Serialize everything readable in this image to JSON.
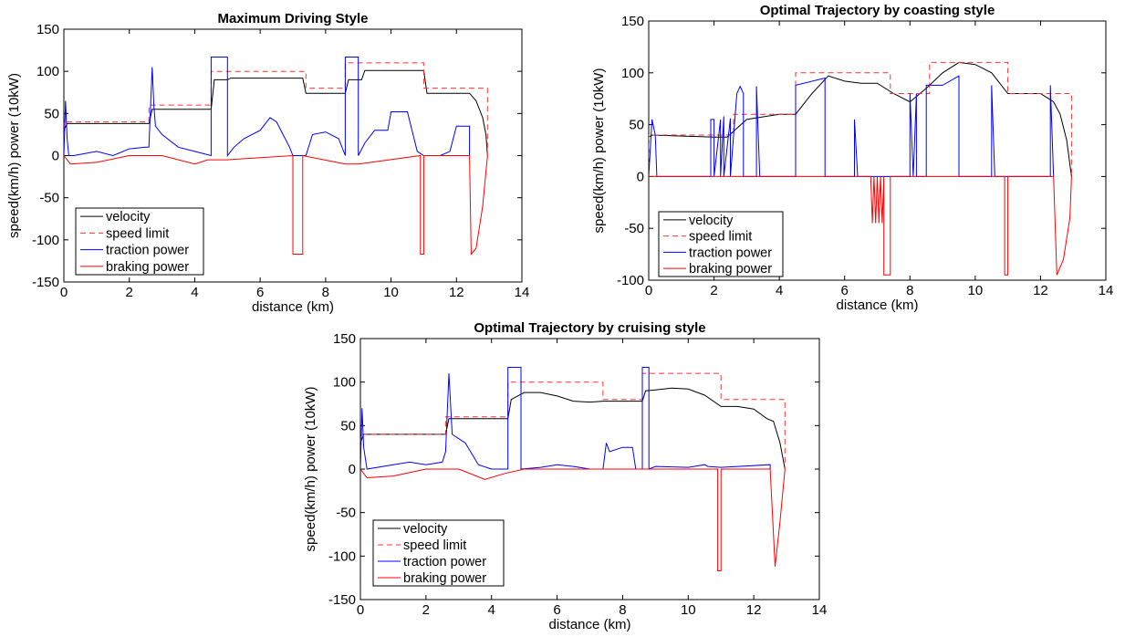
{
  "colors": {
    "velocity": "#000000",
    "speed_limit": "#ff3333",
    "traction": "#0000ff",
    "braking": "#ff0000"
  },
  "chart_data": [
    {
      "type": "line",
      "title": "Maximum Driving Style",
      "xlabel": "distance (km)",
      "ylabel": "speed(km/h) power (10kW)",
      "xlim": [
        0,
        14
      ],
      "ylim": [
        -150,
        150
      ],
      "xticks": [
        0,
        2,
        4,
        6,
        8,
        10,
        12,
        14
      ],
      "yticks": [
        -150,
        -100,
        -50,
        0,
        50,
        100,
        150
      ],
      "legend_position": "bottom-left",
      "series": [
        {
          "name": "velocity",
          "style": "solid",
          "color": "#000000",
          "x": [
            0,
            0.1,
            2.6,
            2.7,
            4.5,
            4.6,
            5.0,
            5.1,
            7.3,
            7.4,
            8.6,
            8.7,
            9.1,
            9.2,
            11.0,
            11.1,
            12.4,
            12.6,
            12.8,
            12.9,
            12.95
          ],
          "y": [
            30,
            38,
            38,
            55,
            55,
            90,
            90,
            92,
            92,
            74,
            74,
            90,
            90,
            101,
            101,
            74,
            74,
            65,
            45,
            25,
            0
          ]
        },
        {
          "name": "speed limit",
          "style": "dashed",
          "color": "#ff3333",
          "x": [
            0,
            0,
            2.6,
            2.6,
            4.5,
            4.5,
            7.4,
            7.4,
            8.6,
            8.6,
            11.0,
            11.0,
            12.95,
            12.95
          ],
          "y": [
            0,
            40,
            40,
            60,
            60,
            100,
            100,
            80,
            80,
            110,
            110,
            80,
            80,
            0
          ]
        },
        {
          "name": "traction power",
          "style": "solid",
          "color": "#0000ff",
          "x": [
            0,
            0.05,
            0.1,
            0.15,
            0.3,
            1.0,
            1.5,
            2.0,
            2.5,
            2.6,
            2.7,
            2.75,
            2.8,
            3.0,
            3.5,
            4.0,
            4.5,
            4.5,
            5.0,
            5.0,
            5.2,
            5.5,
            6.0,
            6.3,
            6.5,
            6.7,
            6.9,
            7.0,
            7.4,
            7.6,
            8.0,
            8.4,
            8.6,
            8.6,
            9.0,
            9.0,
            9.2,
            9.5,
            9.9,
            10.0,
            10.5,
            10.8,
            11.0,
            11.5,
            11.8,
            12.0,
            12.4,
            12.4
          ],
          "y": [
            0,
            65,
            20,
            0,
            0,
            5,
            0,
            8,
            10,
            10,
            105,
            60,
            35,
            25,
            10,
            5,
            0,
            117,
            117,
            0,
            10,
            20,
            30,
            45,
            40,
            25,
            10,
            0,
            0,
            25,
            28,
            20,
            0,
            117,
            117,
            0,
            15,
            30,
            30,
            52,
            52,
            5,
            0,
            0,
            5,
            35,
            35,
            0
          ]
        },
        {
          "name": "braking power",
          "style": "solid",
          "color": "#ff0000",
          "x": [
            0,
            0.2,
            1.0,
            2.0,
            3.0,
            4.0,
            4.4,
            5.0,
            7.0,
            7.0,
            7.3,
            7.3,
            8.6,
            9.0,
            10.9,
            10.9,
            11.0,
            11.0,
            12.4,
            12.45,
            12.6,
            12.8,
            12.95,
            12.95
          ],
          "y": [
            0,
            -10,
            -8,
            0,
            0,
            -10,
            -5,
            -5,
            0,
            -117,
            -117,
            0,
            -10,
            -10,
            0,
            -117,
            -117,
            0,
            0,
            -117,
            -110,
            -60,
            0,
            0
          ]
        }
      ]
    },
    {
      "type": "line",
      "title": "Optimal Trajectory by coasting style",
      "xlabel": "distance (km)",
      "ylabel": "speed(km/h) power (10kW)",
      "xlim": [
        0,
        14
      ],
      "ylim": [
        -100,
        150
      ],
      "xticks": [
        0,
        2,
        4,
        6,
        8,
        10,
        12,
        14
      ],
      "yticks": [
        -100,
        -50,
        0,
        50,
        100,
        150
      ],
      "legend_position": "bottom-left",
      "series": [
        {
          "name": "velocity",
          "style": "solid",
          "color": "#000000",
          "x": [
            0,
            0.1,
            2.0,
            2.4,
            3.0,
            4.0,
            4.5,
            5.0,
            5.5,
            6.0,
            6.5,
            7.0,
            7.5,
            8.0,
            8.5,
            9.0,
            9.5,
            10.0,
            10.5,
            11.0,
            12.0,
            12.4,
            12.6,
            12.8,
            12.95
          ],
          "y": [
            38,
            40,
            38,
            38,
            55,
            60,
            60,
            80,
            97,
            92,
            90,
            90,
            80,
            72,
            85,
            100,
            110,
            108,
            100,
            80,
            80,
            72,
            60,
            35,
            0
          ]
        },
        {
          "name": "speed limit",
          "style": "dashed",
          "color": "#ff3333",
          "x": [
            0,
            0,
            2.6,
            2.6,
            4.5,
            4.5,
            7.4,
            7.4,
            8.6,
            8.6,
            11.0,
            11.0,
            12.95,
            12.95
          ],
          "y": [
            0,
            40,
            40,
            60,
            60,
            100,
            100,
            80,
            80,
            110,
            110,
            80,
            80,
            0
          ]
        },
        {
          "name": "traction power",
          "style": "solid",
          "color": "#0000ff",
          "x": [
            0,
            0.1,
            0.2,
            0.25,
            1.9,
            1.9,
            2.0,
            2.0,
            2.2,
            2.2,
            2.3,
            2.3,
            2.5,
            2.5,
            2.7,
            2.8,
            2.9,
            2.9,
            3.3,
            3.3,
            3.4,
            4.5,
            4.5,
            5.4,
            5.4,
            6.3,
            6.3,
            6.4,
            8.0,
            8.0,
            8.1,
            8.2,
            8.2,
            8.5,
            8.5,
            9.0,
            9.5,
            9.5,
            10.5,
            10.5,
            10.6,
            12.3,
            12.3,
            12.4
          ],
          "y": [
            0,
            55,
            40,
            0,
            0,
            55,
            55,
            0,
            55,
            0,
            58,
            0,
            56,
            0,
            80,
            87,
            80,
            0,
            0,
            87,
            0,
            0,
            88,
            95,
            0,
            0,
            55,
            0,
            0,
            80,
            0,
            80,
            0,
            0,
            88,
            88,
            97,
            0,
            0,
            88,
            0,
            0,
            88,
            0
          ]
        },
        {
          "name": "braking power",
          "style": "solid",
          "color": "#ff0000",
          "x": [
            0,
            6.8,
            6.85,
            6.9,
            6.95,
            7.0,
            7.05,
            7.1,
            7.15,
            7.2,
            7.2,
            7.4,
            7.4,
            10.9,
            10.9,
            11.0,
            11.0,
            12.4,
            12.5,
            12.7,
            12.9,
            12.95
          ],
          "y": [
            0,
            0,
            -45,
            0,
            -45,
            0,
            -45,
            0,
            -45,
            0,
            -95,
            -95,
            0,
            0,
            -95,
            -95,
            0,
            0,
            -95,
            -80,
            -40,
            0
          ]
        }
      ]
    },
    {
      "type": "line",
      "title": "Optimal Trajectory by cruising style",
      "xlabel": "distance (km)",
      "ylabel": "speed(km/h) power (10kW)",
      "xlim": [
        0,
        14
      ],
      "ylim": [
        -150,
        150
      ],
      "xticks": [
        0,
        2,
        4,
        6,
        8,
        10,
        12,
        14
      ],
      "yticks": [
        -150,
        -100,
        -50,
        0,
        50,
        100,
        150
      ],
      "legend_position": "bottom-left",
      "series": [
        {
          "name": "velocity",
          "style": "solid",
          "color": "#000000",
          "x": [
            0,
            0.1,
            2.6,
            2.7,
            4.5,
            4.6,
            5.0,
            5.5,
            6.0,
            6.5,
            7.0,
            7.4,
            7.5,
            8.6,
            8.7,
            9.0,
            9.5,
            10.0,
            10.5,
            11.0,
            11.5,
            12.0,
            12.4,
            12.6,
            12.8,
            12.95
          ],
          "y": [
            30,
            40,
            40,
            58,
            58,
            80,
            88,
            88,
            84,
            78,
            77,
            78,
            78,
            78,
            90,
            91,
            93,
            92,
            85,
            72,
            72,
            69,
            58,
            55,
            30,
            0
          ]
        },
        {
          "name": "speed limit",
          "style": "dashed",
          "color": "#ff3333",
          "x": [
            0,
            0,
            2.6,
            2.6,
            4.5,
            4.5,
            7.4,
            7.4,
            8.6,
            8.6,
            11.0,
            11.0,
            12.95,
            12.95
          ],
          "y": [
            0,
            40,
            40,
            60,
            60,
            100,
            100,
            80,
            80,
            110,
            110,
            80,
            80,
            0
          ]
        },
        {
          "name": "traction power",
          "style": "solid",
          "color": "#0000ff",
          "x": [
            0,
            0.05,
            0.1,
            0.2,
            1.0,
            1.5,
            2.0,
            2.5,
            2.6,
            2.7,
            2.8,
            3.2,
            3.6,
            4.0,
            4.5,
            4.5,
            4.9,
            4.9,
            5.5,
            6.0,
            6.5,
            7.0,
            7.4,
            7.5,
            7.6,
            8.0,
            8.3,
            8.4,
            8.6,
            8.6,
            8.8,
            8.8,
            9.0,
            10.0,
            10.5,
            10.6,
            11.0,
            12.5,
            12.5
          ],
          "y": [
            0,
            70,
            25,
            0,
            5,
            8,
            5,
            8,
            20,
            110,
            40,
            30,
            5,
            0,
            0,
            117,
            117,
            0,
            2,
            5,
            3,
            0,
            0,
            30,
            20,
            25,
            25,
            0,
            0,
            117,
            117,
            0,
            3,
            2,
            5,
            3,
            2,
            5,
            0
          ]
        },
        {
          "name": "braking power",
          "style": "solid",
          "color": "#ff0000",
          "x": [
            0,
            0.2,
            1.0,
            2.0,
            3.0,
            3.8,
            4.4,
            5.0,
            10.9,
            10.9,
            11.0,
            11.0,
            12.5,
            12.65,
            12.8,
            12.95
          ],
          "y": [
            0,
            -10,
            -8,
            0,
            0,
            -12,
            -5,
            0,
            0,
            -117,
            -117,
            0,
            0,
            -112,
            -60,
            0
          ]
        }
      ]
    }
  ]
}
